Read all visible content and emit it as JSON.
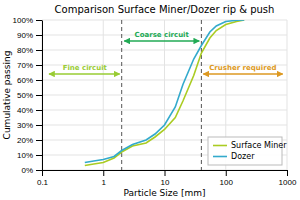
{
  "chart_data": {
    "type": "line",
    "title": "Comparison Surface Miner/Dozer rip & push",
    "x_label": "Particle Size [mm]",
    "y_label": "Cumulative passing",
    "log": "x",
    "xlim": [
      0.1,
      1000
    ],
    "ylim": [
      0,
      100
    ],
    "xticks": [
      0.1,
      1,
      10,
      100,
      1000
    ],
    "yticks": [
      {
        "value": 0,
        "label": "0%"
      },
      {
        "value": 10,
        "label": "10%"
      },
      {
        "value": 20,
        "label": "20%"
      },
      {
        "value": 30,
        "label": "30%"
      },
      {
        "value": 40,
        "label": "40%"
      },
      {
        "value": 50,
        "label": "50%"
      },
      {
        "value": 60,
        "label": "60%"
      },
      {
        "value": 70,
        "label": "70%"
      },
      {
        "value": 80,
        "label": "80%"
      },
      {
        "value": 90,
        "label": "90%"
      },
      {
        "value": 100,
        "label": "100%"
      }
    ],
    "grid": true,
    "legend": "lower-right",
    "series": [
      {
        "name": "Surface Miner",
        "color": "#aacc22",
        "x": [
          0.5,
          0.7,
          1.0,
          1.5,
          2.0,
          3.0,
          5.0,
          7.0,
          10.0,
          15.0,
          20.0,
          30.0,
          40.0,
          55.0,
          70.0,
          100.0,
          150.0,
          200.0
        ],
        "values": [
          3,
          4,
          5,
          8,
          12,
          16,
          18,
          22,
          27,
          35,
          46,
          63,
          78,
          88,
          93,
          97,
          99,
          100
        ]
      },
      {
        "name": "Dozer",
        "color": "#33aacc",
        "x": [
          0.5,
          0.7,
          1.0,
          1.5,
          2.0,
          3.0,
          5.0,
          7.0,
          10.0,
          15.0,
          20.0,
          30.0,
          40.0,
          55.0,
          70.0,
          100.0,
          150.0,
          200.0
        ],
        "values": [
          5,
          6,
          7,
          9,
          13,
          17,
          20,
          24,
          30,
          42,
          57,
          74,
          83,
          92,
          96,
          99,
          99.8,
          100
        ]
      }
    ],
    "vlines": [
      2,
      40
    ],
    "annotations": [
      {
        "text": "Fine circuit",
        "x": 0.5,
        "y": 64,
        "x_range": [
          0.13,
          1.85
        ],
        "color": "#99cc33"
      },
      {
        "text": "Coarse circuit",
        "x": 9,
        "y": 86,
        "x_range": [
          2.2,
          37
        ],
        "color": "#22aa55"
      },
      {
        "text": "Crusher required",
        "x": 190,
        "y": 64,
        "x_range": [
          43,
          850
        ],
        "color": "#dd9922"
      }
    ]
  }
}
